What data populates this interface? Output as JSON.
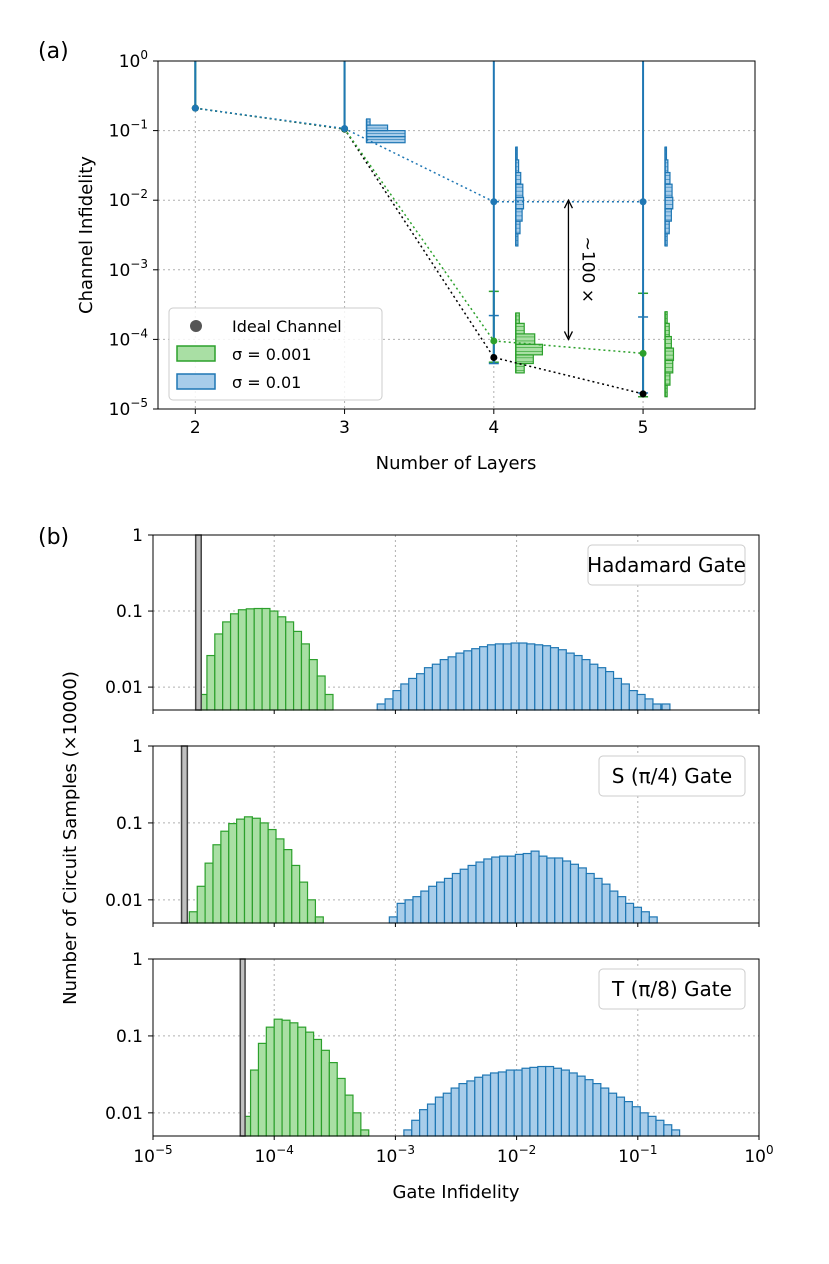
{
  "colors": {
    "green_edge": "#2ca02c",
    "green_fill": "#a9dfa4",
    "blue_edge": "#1f77b4",
    "blue_fill": "#a8cdea",
    "gray_edge": "#444444",
    "gray_fill": "#c0c0c0",
    "grid": "#b0b0b0"
  },
  "chart_data": [
    {
      "type": "line",
      "panel_label": "(a)",
      "xlabel": "Number of Layers",
      "ylabel": "Channel Infidelity",
      "xscale": "linear",
      "yscale": "log",
      "xlim": [
        1.75,
        5.75
      ],
      "ylim": [
        1e-05,
        1
      ],
      "grid": true,
      "x_ticks": [
        2,
        3,
        4,
        5
      ],
      "x_tick_labels": [
        "2",
        "3",
        "4",
        "5"
      ],
      "y_ticks": [
        {
          "value": 1,
          "mant": "10",
          "exp": "0"
        },
        {
          "value": 0.1,
          "mant": "10",
          "exp": "−1"
        },
        {
          "value": 0.01,
          "mant": "10",
          "exp": "−2"
        },
        {
          "value": 0.001,
          "mant": "10",
          "exp": "−3"
        },
        {
          "value": 0.0001,
          "mant": "10",
          "exp": "−4"
        },
        {
          "value": 1e-05,
          "mant": "10",
          "exp": "−5"
        }
      ],
      "series": [
        {
          "name": "Ideal Channel",
          "color": "#000000",
          "x": [
            2,
            3,
            4,
            5
          ],
          "y": [
            0.21,
            0.105,
            5.5e-05,
            1.65e-05
          ]
        },
        {
          "name": "σ = 0.001",
          "color": "#2ca02c",
          "x": [
            2,
            3,
            4,
            5
          ],
          "y": [
            0.21,
            0.106,
            9.5e-05,
            6.3e-05
          ],
          "error_low": [
            0.21,
            0.106,
            4.7e-05,
            1.5e-05
          ],
          "error_high": [
            1,
            1,
            0.00049,
            0.00046
          ]
        },
        {
          "name": "σ = 0.01",
          "color": "#1f77b4",
          "x": [
            2,
            3,
            4,
            5
          ],
          "y": [
            0.21,
            0.107,
            0.0095,
            0.0095
          ],
          "error_low": [
            0.21,
            0.107,
            4.5e-05,
            1.7e-05
          ],
          "error_high": [
            1,
            1,
            1,
            1
          ],
          "extra_ticks": [
            0.00022,
            0.00021
          ]
        }
      ],
      "side_histograms": [
        {
          "layer": 3,
          "color": "blue",
          "bins": [
            [
              0.067,
              0.082,
              0.55
            ],
            [
              0.082,
              0.1,
              0.55
            ],
            [
              0.1,
              0.12,
              0.3
            ],
            [
              0.12,
              0.147,
              0.05
            ]
          ]
        },
        {
          "layer": 4,
          "color": "blue",
          "bins": [
            [
              0.0022,
              0.0033,
              0.03
            ],
            [
              0.0033,
              0.005,
              0.06
            ],
            [
              0.005,
              0.0075,
              0.09
            ],
            [
              0.0075,
              0.011,
              0.11
            ],
            [
              0.011,
              0.017,
              0.1
            ],
            [
              0.017,
              0.025,
              0.07
            ],
            [
              0.025,
              0.038,
              0.04
            ],
            [
              0.038,
              0.058,
              0.02
            ]
          ]
        },
        {
          "layer": 4,
          "color": "green",
          "bins": [
            [
              3.3e-05,
              4.5e-05,
              0.12
            ],
            [
              4.5e-05,
              6e-05,
              0.25
            ],
            [
              6e-05,
              8.5e-05,
              0.38
            ],
            [
              8.5e-05,
              0.00012,
              0.27
            ],
            [
              0.00012,
              0.00017,
              0.12
            ],
            [
              0.00017,
              0.00024,
              0.05
            ]
          ]
        },
        {
          "layer": 5,
          "color": "blue",
          "bins": [
            [
              0.0022,
              0.0033,
              0.03
            ],
            [
              0.0033,
              0.005,
              0.06
            ],
            [
              0.005,
              0.0075,
              0.09
            ],
            [
              0.0075,
              0.011,
              0.11
            ],
            [
              0.011,
              0.017,
              0.1
            ],
            [
              0.017,
              0.025,
              0.07
            ],
            [
              0.025,
              0.038,
              0.04
            ],
            [
              0.038,
              0.058,
              0.02
            ]
          ]
        },
        {
          "layer": 5,
          "color": "green",
          "bins": [
            [
              1.5e-05,
              2.2e-05,
              0.03
            ],
            [
              2.2e-05,
              3.3e-05,
              0.07
            ],
            [
              3.3e-05,
              5e-05,
              0.11
            ],
            [
              5e-05,
              7.5e-05,
              0.12
            ],
            [
              7.5e-05,
              0.00011,
              0.09
            ],
            [
              0.00011,
              0.00017,
              0.06
            ],
            [
              0.00017,
              0.00025,
              0.03
            ]
          ]
        }
      ],
      "legend": {
        "position": "lower-left",
        "entries": [
          {
            "label": "Ideal Channel",
            "kind": "marker",
            "color": "#555555"
          },
          {
            "label": "σ = 0.001",
            "kind": "patch",
            "color": "green"
          },
          {
            "label": "σ = 0.01",
            "kind": "patch",
            "color": "blue"
          }
        ]
      },
      "annotation": {
        "text": "~100 ×",
        "x": 4.5,
        "y_top": 0.01,
        "y_bottom": 0.0001
      }
    },
    {
      "type": "histogram",
      "panel_label": "(b)",
      "xlabel": "Gate Infidelity",
      "ylabel": "Number of Circuit Samples (×10000)",
      "xscale": "log",
      "yscale": "log",
      "xlim": [
        1e-05,
        1
      ],
      "ylim": [
        0.005,
        1
      ],
      "grid": true,
      "x_ticks": [
        {
          "value": 1e-05,
          "mant": "10",
          "exp": "−5"
        },
        {
          "value": 0.0001,
          "mant": "10",
          "exp": "−4"
        },
        {
          "value": 0.001,
          "mant": "10",
          "exp": "−3"
        },
        {
          "value": 0.01,
          "mant": "10",
          "exp": "−2"
        },
        {
          "value": 0.1,
          "mant": "10",
          "exp": "−1"
        },
        {
          "value": 1,
          "mant": "10",
          "exp": "0"
        }
      ],
      "y_ticks": [
        {
          "value": 1,
          "label": "1"
        },
        {
          "value": 0.1,
          "label": "0.1"
        },
        {
          "value": 0.01,
          "label": "0.01"
        }
      ],
      "subplots": [
        {
          "label": "Hadamard Gate",
          "gray": {
            "x0": 2.25e-05,
            "x1": 2.5e-05,
            "value": 1
          },
          "green": {
            "log_start": -4.62,
            "bin_width": 0.065,
            "values": [
              0.008,
              0.026,
              0.05,
              0.072,
              0.092,
              0.104,
              0.107,
              0.108,
              0.108,
              0.1,
              0.084,
              0.072,
              0.054,
              0.037,
              0.023,
              0.014,
              0.008
            ]
          },
          "blue": {
            "log_start": -3.15,
            "bin_width": 0.065,
            "values": [
              0.006,
              0.007,
              0.009,
              0.011,
              0.013,
              0.015,
              0.018,
              0.02,
              0.023,
              0.025,
              0.028,
              0.03,
              0.032,
              0.034,
              0.036,
              0.037,
              0.037,
              0.038,
              0.038,
              0.037,
              0.036,
              0.035,
              0.033,
              0.031,
              0.028,
              0.026,
              0.023,
              0.02,
              0.018,
              0.016,
              0.013,
              0.011,
              0.009,
              0.008,
              0.007,
              0.006
            ]
          },
          "blue_extra": [
            {
              "log_x": -0.8,
              "value": 0.006
            }
          ]
        },
        {
          "label": "S (π/4) Gate",
          "gray": {
            "x0": 1.72e-05,
            "x1": 1.92e-05,
            "value": 1
          },
          "green": {
            "log_start": -4.7,
            "bin_width": 0.065,
            "values": [
              0.007,
              0.015,
              0.03,
              0.052,
              0.078,
              0.098,
              0.112,
              0.12,
              0.115,
              0.1,
              0.082,
              0.062,
              0.045,
              0.028,
              0.017,
              0.01,
              0.006
            ]
          },
          "blue": {
            "log_start": -3.05,
            "bin_width": 0.065,
            "values": [
              0.006,
              0.009,
              0.01,
              0.011,
              0.013,
              0.015,
              0.017,
              0.019,
              0.022,
              0.025,
              0.028,
              0.031,
              0.034,
              0.036,
              0.037,
              0.037,
              0.039,
              0.04,
              0.043,
              0.037,
              0.035,
              0.035,
              0.032,
              0.029,
              0.026,
              0.022,
              0.019,
              0.016,
              0.013,
              0.011,
              0.009,
              0.008,
              0.007,
              0.006
            ]
          }
        },
        {
          "label": "T (π/8) Gate",
          "gray": {
            "x0": 5.25e-05,
            "x1": 5.75e-05,
            "value": 1
          },
          "green": {
            "log_start": -4.26,
            "bin_width": 0.065,
            "values": [
              0.009,
              0.036,
              0.08,
              0.13,
              0.165,
              0.16,
              0.148,
              0.13,
              0.112,
              0.09,
              0.065,
              0.045,
              0.028,
              0.017,
              0.01,
              0.006
            ]
          },
          "blue": {
            "log_start": -2.93,
            "bin_width": 0.065,
            "values": [
              0.006,
              0.008,
              0.011,
              0.013,
              0.016,
              0.018,
              0.021,
              0.024,
              0.026,
              0.029,
              0.031,
              0.033,
              0.034,
              0.036,
              0.036,
              0.038,
              0.039,
              0.04,
              0.04,
              0.038,
              0.036,
              0.033,
              0.03,
              0.027,
              0.024,
              0.021,
              0.018,
              0.016,
              0.014,
              0.012,
              0.01,
              0.009,
              0.008,
              0.007,
              0.006
            ]
          }
        }
      ]
    }
  ]
}
